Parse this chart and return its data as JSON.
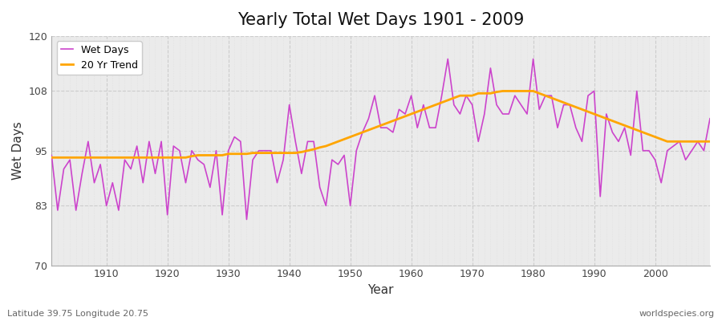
{
  "title": "Yearly Total Wet Days 1901 - 2009",
  "xlabel": "Year",
  "ylabel": "Wet Days",
  "lat_lon_label": "Latitude 39.75 Longitude 20.75",
  "source_label": "worldspecies.org",
  "ylim": [
    70,
    120
  ],
  "yticks": [
    70,
    83,
    95,
    108,
    120
  ],
  "line_color": "#CC44CC",
  "trend_color": "#FFA500",
  "fig_bg_color": "#FFFFFF",
  "plot_bg_color": "#EBEBEB",
  "years": [
    1901,
    1902,
    1903,
    1904,
    1905,
    1906,
    1907,
    1908,
    1909,
    1910,
    1911,
    1912,
    1913,
    1914,
    1915,
    1916,
    1917,
    1918,
    1919,
    1920,
    1921,
    1922,
    1923,
    1924,
    1925,
    1926,
    1927,
    1928,
    1929,
    1930,
    1931,
    1932,
    1933,
    1934,
    1935,
    1936,
    1937,
    1938,
    1939,
    1940,
    1941,
    1942,
    1943,
    1944,
    1945,
    1946,
    1947,
    1948,
    1949,
    1950,
    1951,
    1952,
    1953,
    1954,
    1955,
    1956,
    1957,
    1958,
    1959,
    1960,
    1961,
    1962,
    1963,
    1964,
    1965,
    1966,
    1967,
    1968,
    1969,
    1970,
    1971,
    1972,
    1973,
    1974,
    1975,
    1976,
    1977,
    1978,
    1979,
    1980,
    1981,
    1982,
    1983,
    1984,
    1985,
    1986,
    1987,
    1988,
    1989,
    1990,
    1991,
    1992,
    1993,
    1994,
    1995,
    1996,
    1997,
    1998,
    1999,
    2000,
    2001,
    2002,
    2003,
    2004,
    2005,
    2006,
    2007,
    2008,
    2009
  ],
  "wet_days": [
    94,
    82,
    91,
    93,
    82,
    90,
    97,
    88,
    92,
    83,
    88,
    82,
    93,
    91,
    96,
    88,
    97,
    90,
    97,
    81,
    96,
    95,
    88,
    95,
    93,
    92,
    87,
    95,
    81,
    95,
    98,
    97,
    80,
    93,
    95,
    95,
    95,
    88,
    93,
    105,
    97,
    90,
    97,
    97,
    87,
    83,
    93,
    92,
    94,
    83,
    95,
    99,
    102,
    107,
    100,
    100,
    99,
    104,
    103,
    107,
    100,
    105,
    100,
    100,
    107,
    115,
    105,
    103,
    107,
    105,
    97,
    103,
    113,
    105,
    103,
    103,
    107,
    105,
    103,
    115,
    104,
    107,
    107,
    100,
    105,
    105,
    100,
    97,
    107,
    108,
    85,
    103,
    99,
    97,
    100,
    94,
    108,
    95,
    95,
    93,
    88,
    95,
    96,
    97,
    93,
    95,
    97,
    95,
    102
  ],
  "trend": [
    93.5,
    93.5,
    93.5,
    93.5,
    93.5,
    93.5,
    93.5,
    93.5,
    93.5,
    93.5,
    93.5,
    93.5,
    93.5,
    93.5,
    93.5,
    93.5,
    93.5,
    93.5,
    93.5,
    93.5,
    93.5,
    93.5,
    93.5,
    93.8,
    94.0,
    94.0,
    94.0,
    94.0,
    94.0,
    94.3,
    94.3,
    94.3,
    94.3,
    94.5,
    94.5,
    94.5,
    94.5,
    94.5,
    94.5,
    94.5,
    94.5,
    94.7,
    95.0,
    95.3,
    95.7,
    96.0,
    96.5,
    97.0,
    97.5,
    98.0,
    98.5,
    99.0,
    99.5,
    100.0,
    100.5,
    101.0,
    101.5,
    102.0,
    102.5,
    103.0,
    103.5,
    104.0,
    104.5,
    105.0,
    105.5,
    106.0,
    106.5,
    107.0,
    107.0,
    107.0,
    107.5,
    107.5,
    107.5,
    107.8,
    108.0,
    108.0,
    108.0,
    108.0,
    108.0,
    108.0,
    107.5,
    107.0,
    106.5,
    106.0,
    105.5,
    105.0,
    104.5,
    104.0,
    103.5,
    103.0,
    102.5,
    102.0,
    101.5,
    101.0,
    100.5,
    100.0,
    99.5,
    99.0,
    98.5,
    98.0,
    97.5,
    97.0,
    97.0,
    97.0,
    97.0,
    97.0,
    97.0,
    97.0,
    97.0
  ]
}
